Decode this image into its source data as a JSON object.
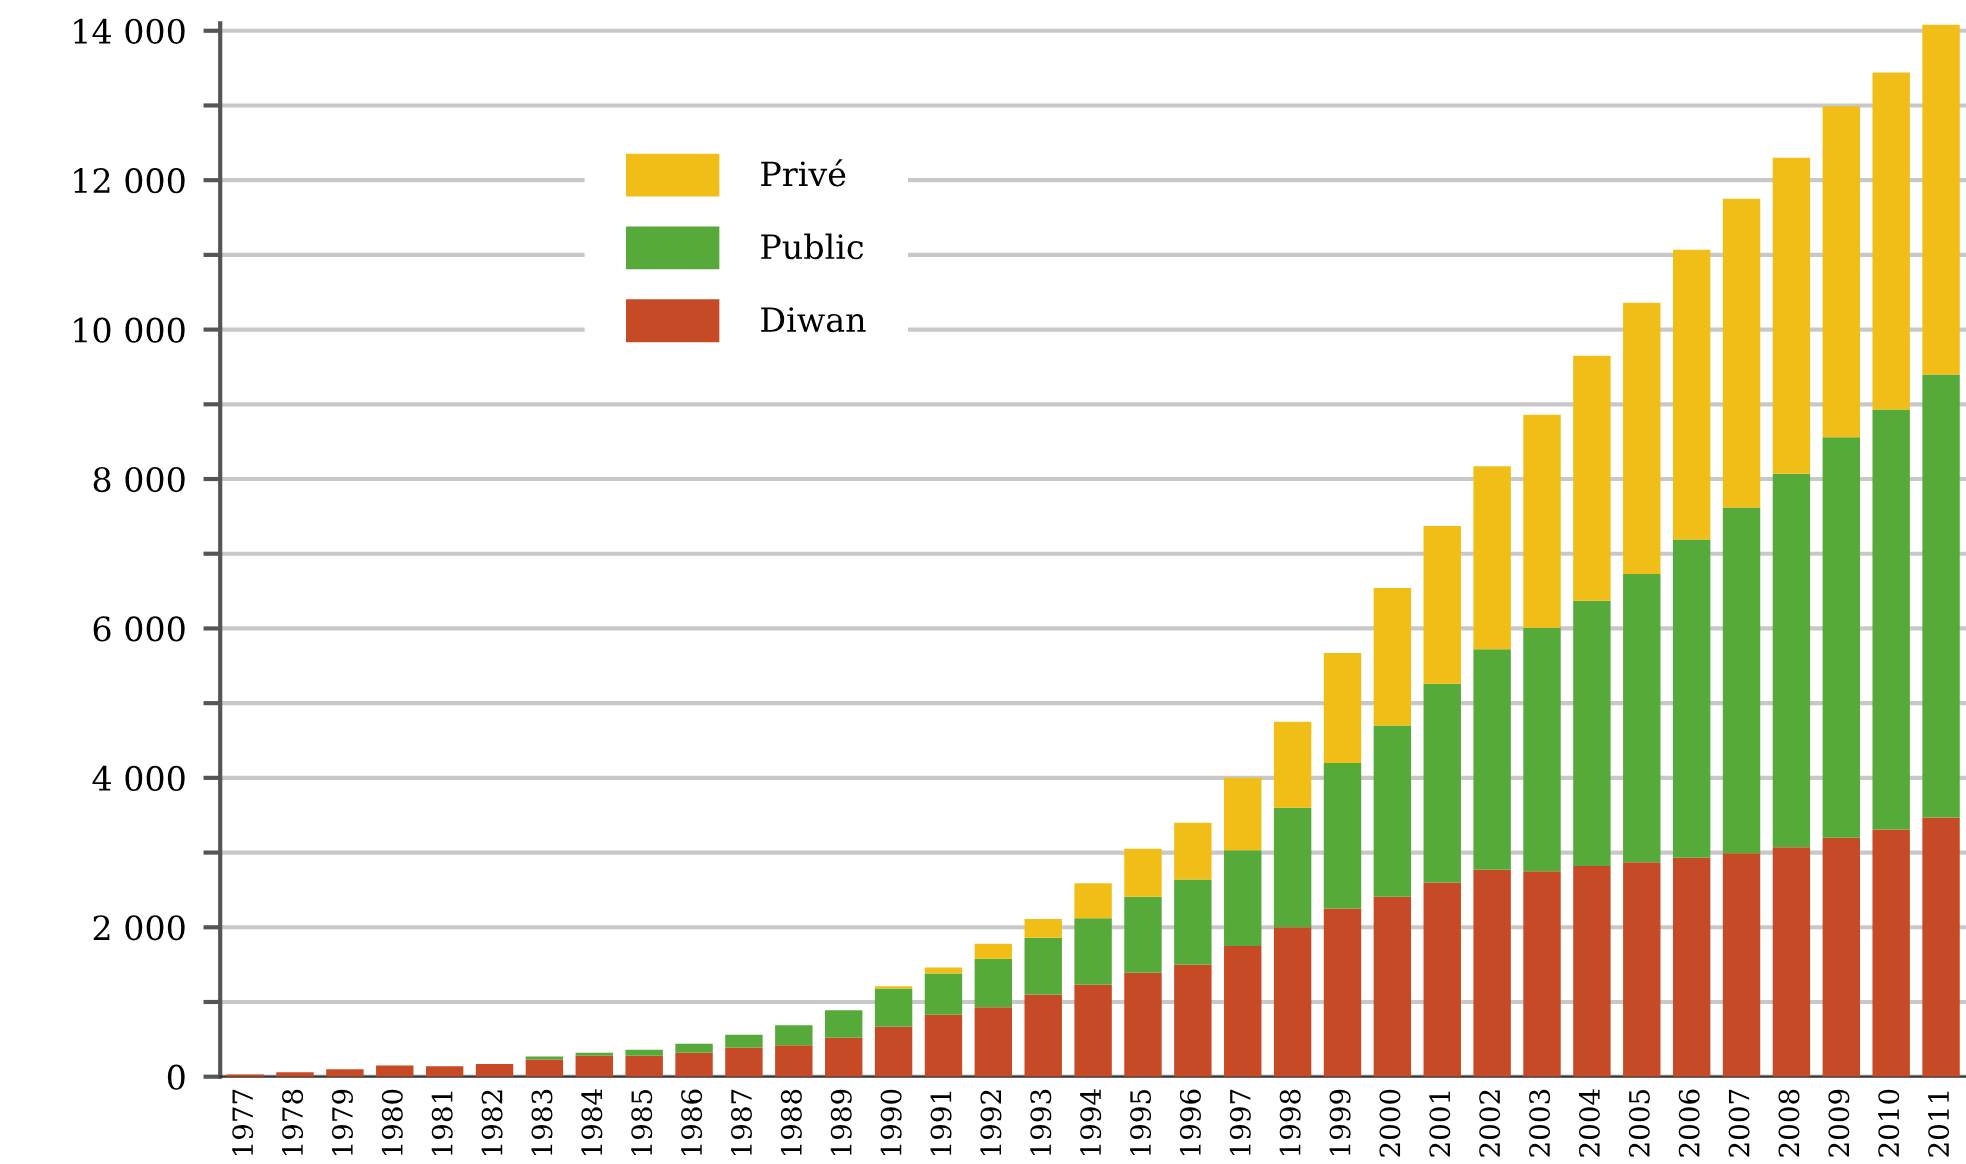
{
  "chart_data": {
    "type": "bar",
    "stacked": true,
    "categories": [
      "1977",
      "1978",
      "1979",
      "1980",
      "1981",
      "1982",
      "1983",
      "1984",
      "1985",
      "1986",
      "1987",
      "1988",
      "1989",
      "1990",
      "1991",
      "1992",
      "1993",
      "1994",
      "1995",
      "1996",
      "1997",
      "1998",
      "1999",
      "2000",
      "2001",
      "2002",
      "2003",
      "2004",
      "2005",
      "2006",
      "2007",
      "2008",
      "2009",
      "2010",
      "2011"
    ],
    "series": [
      {
        "name": "Diwan",
        "color": "#c64a25",
        "values": [
          30,
          60,
          100,
          150,
          140,
          170,
          230,
          280,
          280,
          320,
          390,
          420,
          520,
          670,
          830,
          930,
          1100,
          1230,
          1390,
          1500,
          1750,
          2000,
          2250,
          2410,
          2600,
          2770,
          2750,
          2820,
          2870,
          2930,
          2990,
          3070,
          3200,
          3310,
          3470
        ]
      },
      {
        "name": "Public",
        "color": "#56aa3a",
        "values": [
          0,
          0,
          0,
          0,
          0,
          0,
          40,
          40,
          80,
          120,
          170,
          270,
          370,
          510,
          550,
          650,
          760,
          890,
          1020,
          1140,
          1280,
          1600,
          1950,
          2290,
          2660,
          2950,
          3260,
          3550,
          3860,
          4260,
          4630,
          5000,
          5360,
          5620,
          5930
        ]
      },
      {
        "name": "Privé",
        "color": "#f0be16",
        "values": [
          0,
          0,
          0,
          0,
          0,
          0,
          0,
          0,
          0,
          0,
          0,
          0,
          0,
          30,
          80,
          200,
          250,
          470,
          640,
          760,
          970,
          1150,
          1470,
          1840,
          2110,
          2450,
          2850,
          3280,
          3630,
          3880,
          4130,
          4230,
          4430,
          4510,
          4680
        ]
      }
    ],
    "ylim": [
      0,
      14100
    ],
    "yticks": [
      0,
      {
        "value": 1000,
        "label": null
      },
      {
        "value": 2000,
        "label": "2 000"
      },
      {
        "value": 3000,
        "label": null
      },
      {
        "value": 4000,
        "label": "4 000"
      },
      {
        "value": 5000,
        "label": null
      },
      {
        "value": 6000,
        "label": "6 000"
      },
      {
        "value": 7000,
        "label": null
      },
      {
        "value": 8000,
        "label": "8 000"
      },
      {
        "value": 9000,
        "label": null
      },
      {
        "value": 10000,
        "label": "10 000"
      },
      {
        "value": 11000,
        "label": null
      },
      {
        "value": 12000,
        "label": "12 000"
      },
      {
        "value": 13000,
        "label": null
      },
      {
        "value": 14000,
        "label": "14 000"
      }
    ],
    "grid": "y",
    "legend": "top left"
  }
}
